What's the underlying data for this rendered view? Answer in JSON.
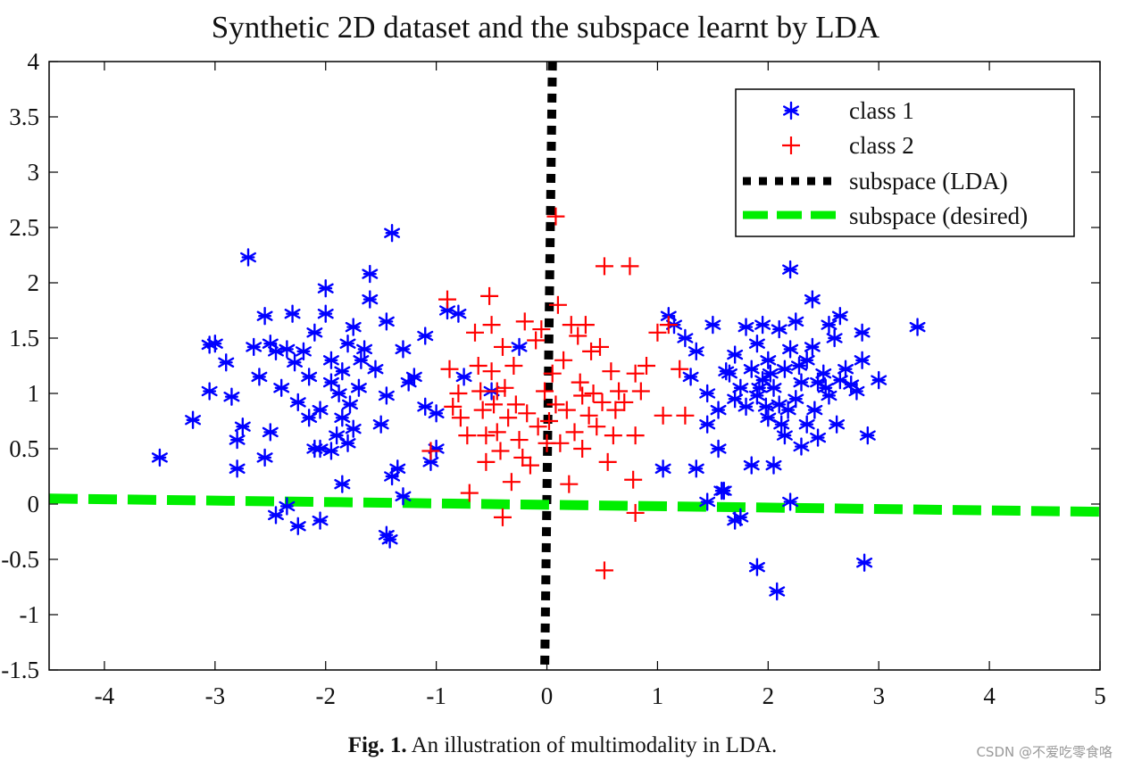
{
  "chart_data": {
    "type": "scatter",
    "title": "Synthetic 2D dataset and the subspace learnt by LDA",
    "xlim": [
      -4.5,
      5
    ],
    "ylim": [
      -1.5,
      4
    ],
    "xticks": [
      "-4",
      "-3",
      "-2",
      "-1",
      "0",
      "1",
      "2",
      "3",
      "4",
      "5"
    ],
    "xtick_values": [
      -4,
      -3,
      -2,
      -1,
      0,
      1,
      2,
      3,
      4,
      5
    ],
    "yticks": [
      "4",
      "3.5",
      "3",
      "2.5",
      "2",
      "1.5",
      "1",
      "0.5",
      "0",
      "-0.5",
      "-1",
      "-1.5"
    ],
    "ytick_values": [
      4,
      3.5,
      3,
      2.5,
      2,
      1.5,
      1,
      0.5,
      0,
      -0.5,
      -1,
      -1.5
    ],
    "legend": {
      "position": "top-right",
      "entries": [
        "class 1",
        "class 2",
        "subspace (LDA)",
        "subspace (desired)"
      ]
    },
    "series": [
      {
        "name": "class 1",
        "marker": "asterisk",
        "color": "#0000ff",
        "points": [
          [
            -3.5,
            0.42
          ],
          [
            -3.2,
            0.76
          ],
          [
            -3.05,
            1.44
          ],
          [
            -3.0,
            1.45
          ],
          [
            -3.05,
            1.02
          ],
          [
            -2.85,
            0.97
          ],
          [
            -2.9,
            1.28
          ],
          [
            -2.8,
            0.32
          ],
          [
            -2.75,
            0.7
          ],
          [
            -2.8,
            0.58
          ],
          [
            -2.7,
            2.23
          ],
          [
            -2.65,
            1.42
          ],
          [
            -2.55,
            1.7
          ],
          [
            -2.6,
            1.15
          ],
          [
            -2.5,
            1.45
          ],
          [
            -2.55,
            0.42
          ],
          [
            -2.5,
            0.65
          ],
          [
            -2.45,
            1.38
          ],
          [
            -2.4,
            1.05
          ],
          [
            -2.35,
            1.4
          ],
          [
            -2.3,
            1.72
          ],
          [
            -2.25,
            0.92
          ],
          [
            -2.2,
            1.38
          ],
          [
            -2.15,
            1.15
          ],
          [
            -2.1,
            1.55
          ],
          [
            -2.05,
            0.85
          ],
          [
            -2.05,
            0.5
          ],
          [
            -2.0,
            1.95
          ],
          [
            -2.0,
            1.72
          ],
          [
            -1.95,
            1.3
          ],
          [
            -1.95,
            1.1
          ],
          [
            -1.9,
            0.62
          ],
          [
            -1.85,
            0.78
          ],
          [
            -1.85,
            1.2
          ],
          [
            -1.8,
            1.45
          ],
          [
            -1.8,
            0.55
          ],
          [
            -1.75,
            0.68
          ],
          [
            -1.75,
            1.6
          ],
          [
            -1.7,
            1.05
          ],
          [
            -1.65,
            1.4
          ],
          [
            -1.6,
            1.85
          ],
          [
            -1.6,
            2.08
          ],
          [
            -1.55,
            1.22
          ],
          [
            -1.5,
            0.72
          ],
          [
            -1.45,
            1.65
          ],
          [
            -1.45,
            0.98
          ],
          [
            -1.4,
            0.25
          ],
          [
            -1.35,
            0.32
          ],
          [
            -1.3,
            0.07
          ],
          [
            -1.3,
            1.4
          ],
          [
            -1.25,
            1.1
          ],
          [
            -1.2,
            1.15
          ],
          [
            -1.4,
            2.45
          ],
          [
            -1.1,
            0.88
          ],
          [
            -1.1,
            1.52
          ],
          [
            -1.05,
            0.38
          ],
          [
            -1.0,
            0.5
          ],
          [
            -1.0,
            0.82
          ],
          [
            -2.45,
            -0.1
          ],
          [
            -2.35,
            -0.02
          ],
          [
            -2.25,
            -0.2
          ],
          [
            -2.05,
            -0.15
          ],
          [
            -1.45,
            -0.28
          ],
          [
            -1.42,
            -0.32
          ],
          [
            -1.85,
            0.18
          ],
          [
            -2.15,
            0.78
          ],
          [
            -1.95,
            0.48
          ],
          [
            -2.1,
            0.5
          ],
          [
            -1.88,
            1.0
          ],
          [
            -1.78,
            0.9
          ],
          [
            -1.68,
            1.3
          ],
          [
            -2.28,
            1.28
          ],
          [
            -0.9,
            1.75
          ],
          [
            -0.8,
            1.72
          ],
          [
            -0.75,
            1.15
          ],
          [
            -0.5,
            1.02
          ],
          [
            -0.25,
            1.42
          ],
          [
            1.05,
            0.32
          ],
          [
            1.1,
            1.7
          ],
          [
            1.15,
            1.62
          ],
          [
            1.25,
            1.5
          ],
          [
            1.3,
            1.15
          ],
          [
            1.35,
            1.38
          ],
          [
            1.35,
            0.32
          ],
          [
            1.45,
            1.0
          ],
          [
            1.45,
            0.72
          ],
          [
            1.5,
            1.62
          ],
          [
            1.55,
            0.85
          ],
          [
            1.55,
            0.5
          ],
          [
            1.6,
            0.12
          ],
          [
            1.65,
            1.18
          ],
          [
            1.7,
            1.35
          ],
          [
            1.7,
            0.95
          ],
          [
            1.75,
            1.05
          ],
          [
            1.8,
            1.6
          ],
          [
            1.8,
            0.88
          ],
          [
            1.85,
            1.22
          ],
          [
            1.85,
            0.35
          ],
          [
            1.9,
            1.45
          ],
          [
            1.9,
            0.98
          ],
          [
            1.95,
            1.62
          ],
          [
            1.95,
            1.12
          ],
          [
            2.0,
            0.78
          ],
          [
            2.0,
            1.3
          ],
          [
            2.05,
            0.35
          ],
          [
            2.05,
            1.05
          ],
          [
            2.1,
            1.58
          ],
          [
            2.1,
            0.9
          ],
          [
            2.15,
            1.22
          ],
          [
            2.15,
            0.62
          ],
          [
            2.2,
            1.4
          ],
          [
            2.2,
            2.12
          ],
          [
            2.25,
            0.95
          ],
          [
            2.25,
            1.65
          ],
          [
            2.3,
            1.1
          ],
          [
            2.3,
            0.52
          ],
          [
            2.35,
            0.72
          ],
          [
            2.35,
            1.3
          ],
          [
            2.4,
            1.85
          ],
          [
            2.4,
            1.42
          ],
          [
            2.45,
            1.1
          ],
          [
            2.45,
            0.6
          ],
          [
            2.5,
            1.18
          ],
          [
            2.55,
            0.98
          ],
          [
            2.55,
            1.62
          ],
          [
            2.6,
            1.5
          ],
          [
            2.65,
            1.12
          ],
          [
            2.65,
            1.7
          ],
          [
            2.7,
            1.22
          ],
          [
            2.75,
            1.08
          ],
          [
            2.8,
            1.02
          ],
          [
            2.85,
            1.3
          ],
          [
            2.85,
            1.55
          ],
          [
            2.9,
            0.62
          ],
          [
            3.0,
            1.12
          ],
          [
            3.35,
            1.6
          ],
          [
            1.45,
            0.02
          ],
          [
            1.58,
            0.12
          ],
          [
            1.7,
            -0.15
          ],
          [
            1.75,
            -0.12
          ],
          [
            1.9,
            -0.57
          ],
          [
            2.08,
            -0.79
          ],
          [
            2.2,
            0.02
          ],
          [
            2.87,
            -0.53
          ],
          [
            1.62,
            1.2
          ],
          [
            1.92,
            1.05
          ],
          [
            2.02,
            1.18
          ],
          [
            2.12,
            0.72
          ],
          [
            2.28,
            1.25
          ],
          [
            2.42,
            0.85
          ],
          [
            2.52,
            1.05
          ],
          [
            2.62,
            0.72
          ],
          [
            2.18,
            0.85
          ],
          [
            1.98,
            0.88
          ]
        ]
      },
      {
        "name": "class 2",
        "marker": "plus",
        "color": "#ff0000",
        "points": [
          [
            -1.05,
            0.48
          ],
          [
            -0.9,
            1.85
          ],
          [
            -0.88,
            1.22
          ],
          [
            -0.85,
            0.88
          ],
          [
            -0.8,
            1.0
          ],
          [
            -0.78,
            0.78
          ],
          [
            -0.72,
            0.62
          ],
          [
            -0.7,
            0.1
          ],
          [
            -0.65,
            1.55
          ],
          [
            -0.62,
            1.25
          ],
          [
            -0.58,
            0.85
          ],
          [
            -0.55,
            0.62
          ],
          [
            -0.55,
            0.38
          ],
          [
            -0.52,
            1.88
          ],
          [
            -0.5,
            1.62
          ],
          [
            -0.5,
            1.2
          ],
          [
            -0.48,
            0.9
          ],
          [
            -0.45,
            0.65
          ],
          [
            -0.42,
            0.48
          ],
          [
            -0.4,
            1.42
          ],
          [
            -0.38,
            1.05
          ],
          [
            -0.35,
            0.78
          ],
          [
            -0.32,
            0.2
          ],
          [
            -0.3,
            1.25
          ],
          [
            -0.28,
            0.9
          ],
          [
            -0.25,
            0.58
          ],
          [
            -0.2,
            1.65
          ],
          [
            -0.18,
            0.82
          ],
          [
            -0.15,
            0.35
          ],
          [
            -0.1,
            1.48
          ],
          [
            -0.08,
            0.7
          ],
          [
            -0.05,
            1.58
          ],
          [
            -0.02,
            1.02
          ],
          [
            0.0,
            0.55
          ],
          [
            0.05,
            1.18
          ],
          [
            0.08,
            2.6
          ],
          [
            0.1,
            1.8
          ],
          [
            0.12,
            0.55
          ],
          [
            0.15,
            1.3
          ],
          [
            0.18,
            0.85
          ],
          [
            0.2,
            0.18
          ],
          [
            0.25,
            0.65
          ],
          [
            0.28,
            1.52
          ],
          [
            0.3,
            1.1
          ],
          [
            0.32,
            0.5
          ],
          [
            0.35,
            1.62
          ],
          [
            0.38,
            0.8
          ],
          [
            0.4,
            1.38
          ],
          [
            0.42,
            1.0
          ],
          [
            0.45,
            0.7
          ],
          [
            0.48,
            1.42
          ],
          [
            0.5,
            0.92
          ],
          [
            0.52,
            2.15
          ],
          [
            0.55,
            0.38
          ],
          [
            0.58,
            1.2
          ],
          [
            0.6,
            0.62
          ],
          [
            0.62,
            0.85
          ],
          [
            0.65,
            1.02
          ],
          [
            0.7,
            0.92
          ],
          [
            0.75,
            2.15
          ],
          [
            0.78,
            0.22
          ],
          [
            0.8,
            1.18
          ],
          [
            0.8,
            0.62
          ],
          [
            0.85,
            1.02
          ],
          [
            0.9,
            1.25
          ],
          [
            1.0,
            1.55
          ],
          [
            1.05,
            0.8
          ],
          [
            1.1,
            1.62
          ],
          [
            1.2,
            1.22
          ],
          [
            1.25,
            0.8
          ],
          [
            -0.4,
            -0.12
          ],
          [
            0.52,
            -0.6
          ],
          [
            0.8,
            -0.08
          ],
          [
            -0.45,
            1.02
          ],
          [
            0.02,
            0.75
          ],
          [
            0.22,
            1.62
          ],
          [
            0.08,
            0.9
          ],
          [
            -0.6,
            1.02
          ],
          [
            0.32,
            0.98
          ],
          [
            -0.22,
            0.42
          ]
        ]
      }
    ],
    "lines": [
      {
        "name": "subspace (LDA)",
        "style": "dotted",
        "color": "#000000",
        "x": [
          0.05,
          -0.02
        ],
        "y": [
          4,
          -1.5
        ]
      },
      {
        "name": "subspace (desired)",
        "style": "dashed",
        "color": "#00ee00",
        "x": [
          -4.5,
          5
        ],
        "y": [
          0.05,
          -0.07
        ]
      }
    ]
  },
  "caption": {
    "label": "Fig. 1.",
    "text": "An illustration of multimodality in LDA."
  },
  "watermark": "CSDN @不爱吃零食咯"
}
